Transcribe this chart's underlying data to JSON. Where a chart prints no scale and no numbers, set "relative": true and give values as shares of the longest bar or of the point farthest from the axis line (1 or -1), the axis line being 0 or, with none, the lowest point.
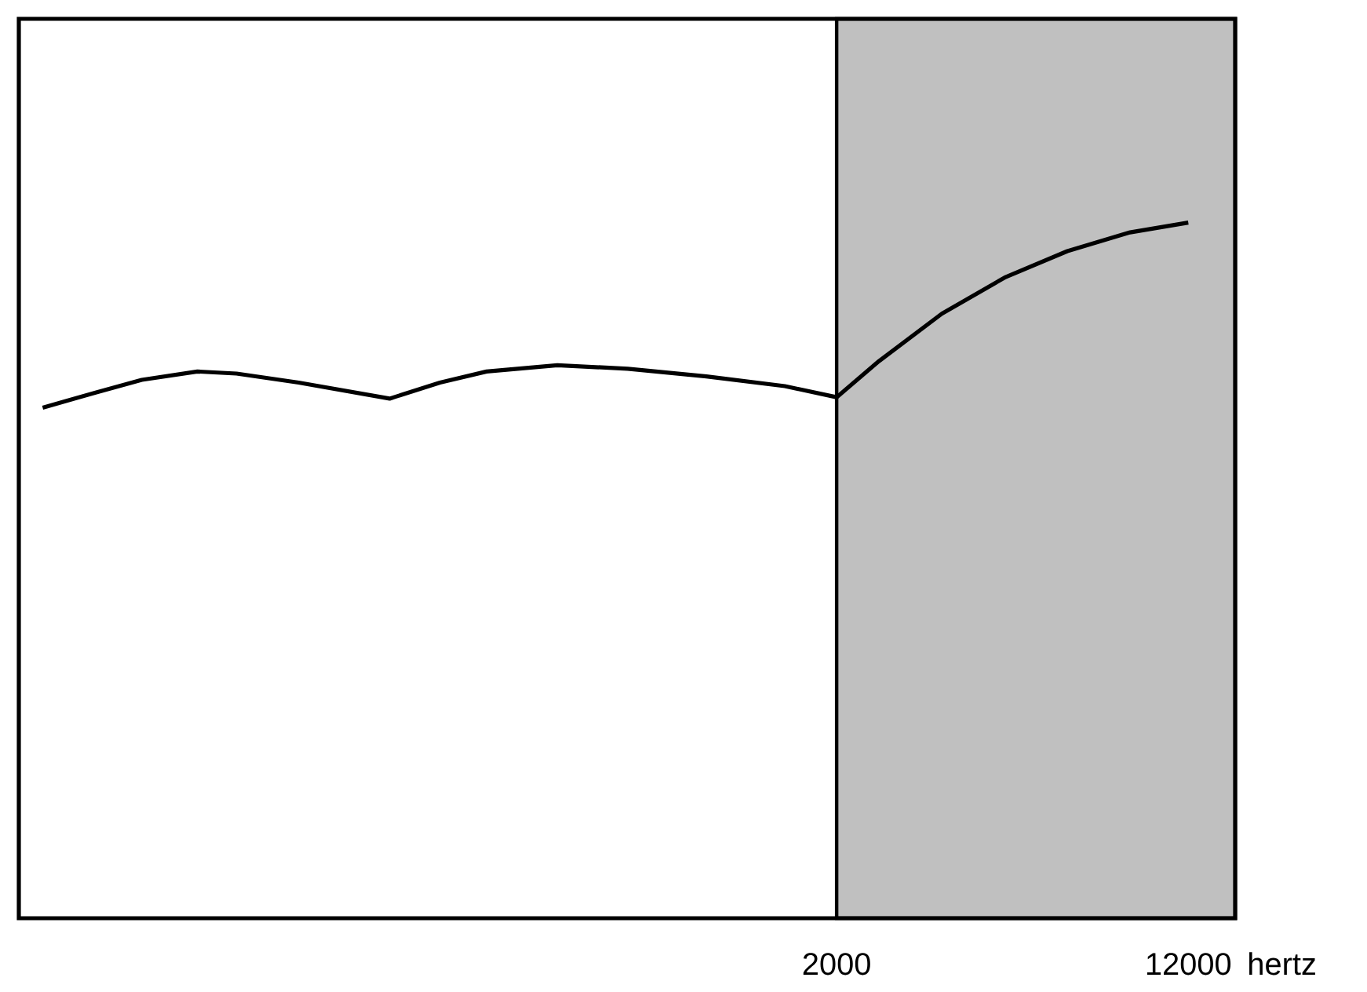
{
  "chart_data": {
    "type": "line",
    "relative": true,
    "xlabel": "hertz",
    "log": "x",
    "x": [
      35,
      46,
      58,
      77,
      94,
      129,
      205,
      265,
      336,
      482,
      690,
      1030,
      1536,
      2000,
      2482,
      3418,
      4707,
      6480,
      8920,
      12000
    ],
    "series": [
      {
        "color": "#000000",
        "values": [
          0.734,
          0.756,
          0.774,
          0.786,
          0.783,
          0.77,
          0.747,
          0.77,
          0.786,
          0.795,
          0.79,
          0.779,
          0.765,
          0.749,
          0.801,
          0.869,
          0.921,
          0.959,
          0.986,
          1.0
        ]
      }
    ],
    "xlim": [
      31,
      15240
    ],
    "xticks": [
      2000,
      12000
    ],
    "bands": [
      {
        "axis": "x",
        "from": 2000,
        "to": 15240,
        "color": "#c0c0c0"
      }
    ],
    "grid": false,
    "marker": "none",
    "line_style": "solid"
  }
}
